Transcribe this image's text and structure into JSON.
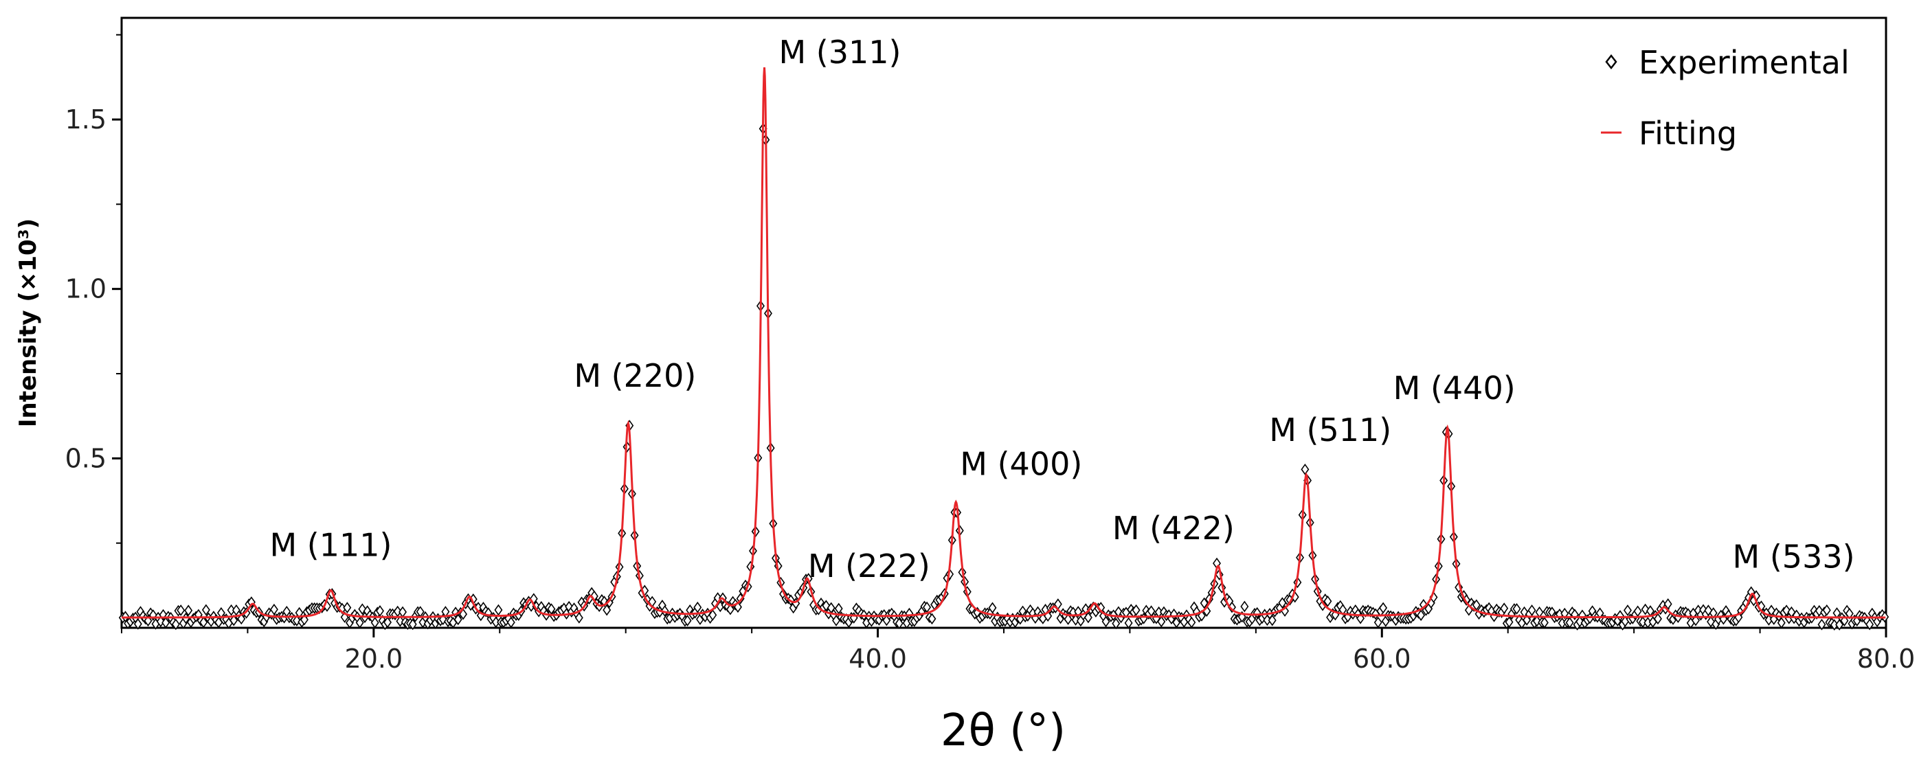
{
  "chart_data": {
    "type": "line",
    "title": "",
    "xlabel": "2θ (°)",
    "ylabel": "Intensity (×10³)",
    "xlim": [
      10.0,
      80.0
    ],
    "ylim": [
      0.0,
      1.8
    ],
    "x_ticks": [
      20.0,
      40.0,
      60.0,
      80.0
    ],
    "x_tick_labels": [
      "20.0",
      "40.0",
      "60.0",
      "80.0"
    ],
    "y_ticks": [
      0.5,
      1.0,
      1.5
    ],
    "y_tick_labels": [
      "0.5",
      "1.0",
      "1.5"
    ],
    "grid": false,
    "legend_position": "top-right",
    "series": [
      {
        "name": "Experimental",
        "style": "open-diamond-markers",
        "color": "#000000"
      },
      {
        "name": "Fitting",
        "style": "line",
        "color": "#e8262a"
      }
    ],
    "peaks": [
      {
        "label": "M (111)",
        "x": 18.3,
        "y": 0.11
      },
      {
        "label": "M (220)",
        "x": 30.1,
        "y": 0.6
      },
      {
        "label": "M (311)",
        "x": 35.5,
        "y": 1.65
      },
      {
        "label": "M (222)",
        "x": 37.2,
        "y": 0.13
      },
      {
        "label": "M (400)",
        "x": 43.1,
        "y": 0.37
      },
      {
        "label": "M (422)",
        "x": 53.5,
        "y": 0.18
      },
      {
        "label": "M (511)",
        "x": 57.0,
        "y": 0.45
      },
      {
        "label": "M (440)",
        "x": 62.6,
        "y": 0.59
      },
      {
        "label": "M (533)",
        "x": 74.7,
        "y": 0.1
      }
    ],
    "minor_peaks": [
      {
        "x": 15.2,
        "y": 0.07
      },
      {
        "x": 23.8,
        "y": 0.09
      },
      {
        "x": 26.2,
        "y": 0.08
      },
      {
        "x": 28.6,
        "y": 0.08
      },
      {
        "x": 33.8,
        "y": 0.07
      },
      {
        "x": 47.0,
        "y": 0.06
      },
      {
        "x": 48.6,
        "y": 0.07
      },
      {
        "x": 71.2,
        "y": 0.06
      }
    ],
    "baseline": 0.03
  }
}
